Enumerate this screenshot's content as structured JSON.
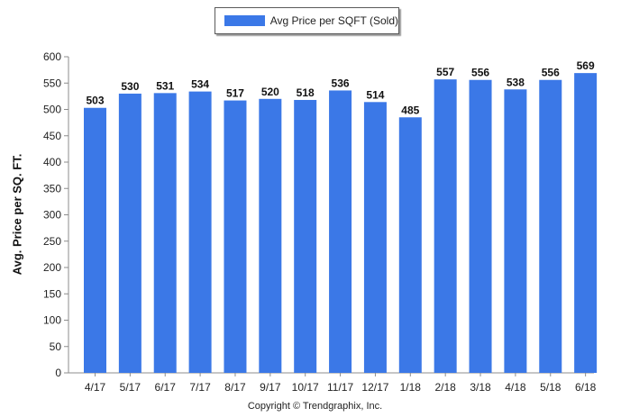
{
  "chart_data": {
    "type": "bar",
    "categories": [
      "4/17",
      "5/17",
      "6/17",
      "7/17",
      "8/17",
      "9/17",
      "10/17",
      "11/17",
      "12/17",
      "1/18",
      "2/18",
      "3/18",
      "4/18",
      "5/18",
      "6/18"
    ],
    "series": [
      {
        "name": "Avg Price per SQFT (Sold)",
        "values": [
          503,
          530,
          531,
          534,
          517,
          520,
          518,
          536,
          514,
          485,
          557,
          556,
          538,
          556,
          569
        ]
      }
    ],
    "ylabel": "Avg. Price per SQ. FT.",
    "xlabel": "",
    "ylim": [
      0,
      600
    ],
    "yticks": [
      0,
      50,
      100,
      150,
      200,
      250,
      300,
      350,
      400,
      450,
      500,
      550,
      600
    ],
    "grid": false,
    "legend": "top-center",
    "bar_color": "#3b78e7"
  },
  "copyright": "Copyright © Trendgraphix, Inc."
}
